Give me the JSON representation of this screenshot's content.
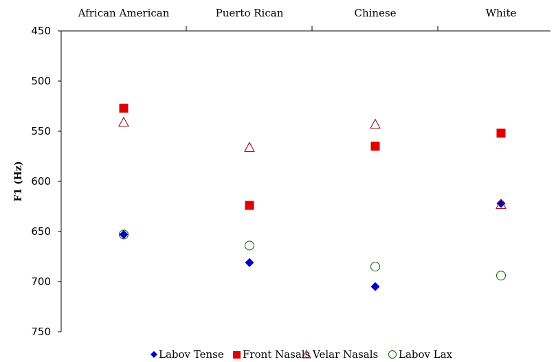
{
  "chart_data": {
    "type": "scatter",
    "categories": [
      "African American",
      "Puerto Rican",
      "Chinese",
      "White"
    ],
    "ylabel": "F1 (Hz)",
    "ylim": [
      450,
      750
    ],
    "y_inverted": true,
    "yticks": [
      "450",
      "500",
      "550",
      "600",
      "650",
      "700",
      "750"
    ],
    "category_axis_position": "top",
    "grid": false,
    "legend_position": "bottom",
    "series": [
      {
        "name": "Labov Tense",
        "marker": "filled-diamond",
        "color": "#0000CC",
        "values": [
          653,
          681,
          705,
          622
        ]
      },
      {
        "name": "Front Nasals",
        "marker": "filled-square",
        "color": "#E00000",
        "values": [
          527,
          624,
          565,
          552
        ]
      },
      {
        "name": "Velar Nasals",
        "marker": "hollow-triangle",
        "color": "#8B0000",
        "values": [
          541,
          566,
          543,
          623
        ]
      },
      {
        "name": "Labov Lax",
        "marker": "hollow-circle",
        "color": "#006400",
        "values": [
          653,
          664,
          685,
          694
        ]
      }
    ]
  }
}
